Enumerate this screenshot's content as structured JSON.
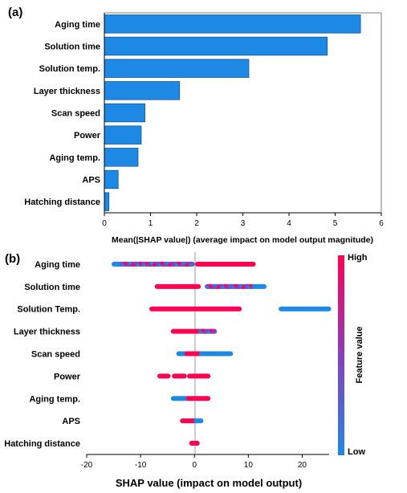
{
  "chart_data": [
    {
      "type": "bar",
      "orientation": "horizontal",
      "panel_label": "(a)",
      "categories": [
        "Aging time",
        "Solution time",
        "Solution temp.",
        "Layer thickness",
        "Scan speed",
        "Power",
        "Aging temp.",
        "APS",
        "Hatching distance"
      ],
      "values": [
        5.55,
        4.83,
        3.13,
        1.63,
        0.88,
        0.8,
        0.73,
        0.3,
        0.1
      ],
      "xlabel": "Mean(|SHAP value|) (average impact on model output magnitude)",
      "xlim": [
        0,
        6
      ],
      "xticks": [
        "0",
        "1",
        "2",
        "3",
        "4",
        "5",
        "6"
      ],
      "bar_color": "#1e88e5"
    },
    {
      "type": "scatter",
      "subtype": "beeswarm",
      "panel_label": "(b)",
      "categories": [
        "Aging time",
        "Solution time",
        "Solution Temp.",
        "Layer thickness",
        "Scan speed",
        "Power",
        "Aging temp.",
        "APS",
        "Hatching distance"
      ],
      "segments": [
        [
          {
            "from": -15,
            "to": -13.5,
            "value": "low"
          },
          {
            "from": -13.5,
            "to": -9.5,
            "value": "mixed"
          },
          {
            "from": -9.5,
            "to": -3.5,
            "value": "mixed"
          },
          {
            "from": -3.5,
            "to": -0.3,
            "value": "mixed"
          },
          {
            "from": 0.5,
            "to": 11,
            "value": "high"
          }
        ],
        [
          {
            "from": -7,
            "to": 0.8,
            "value": "high"
          },
          {
            "from": 2.3,
            "to": 7,
            "value": "mixed"
          },
          {
            "from": 7,
            "to": 11,
            "value": "mixed"
          },
          {
            "from": 11,
            "to": 13,
            "value": "low"
          }
        ],
        [
          {
            "from": -8,
            "to": 8.4,
            "value": "high"
          },
          {
            "from": 16,
            "to": 25,
            "value": "low"
          }
        ],
        [
          {
            "from": -4,
            "to": 1,
            "value": "high"
          },
          {
            "from": 1,
            "to": 2.5,
            "value": "mixed"
          },
          {
            "from": 2.5,
            "to": 3.8,
            "value": "mixed"
          }
        ],
        [
          {
            "from": -3,
            "to": -1.5,
            "value": "low"
          },
          {
            "from": -1.5,
            "to": 1.2,
            "value": "high"
          },
          {
            "from": 1.2,
            "to": 6.8,
            "value": "low"
          }
        ],
        [
          {
            "from": -6.5,
            "to": -4.8,
            "value": "high"
          },
          {
            "from": -3.8,
            "to": -1.8,
            "value": "high"
          },
          {
            "from": -1,
            "to": 2.6,
            "value": "high"
          }
        ],
        [
          {
            "from": -4,
            "to": -1.2,
            "value": "low"
          },
          {
            "from": -1.2,
            "to": 2.6,
            "value": "high"
          }
        ],
        [
          {
            "from": -2.3,
            "to": 0.2,
            "value": "high"
          },
          {
            "from": 0.2,
            "to": 1.3,
            "value": "low"
          }
        ],
        [
          {
            "from": -0.6,
            "to": 0.6,
            "value": "high"
          }
        ]
      ],
      "xlabel": "SHAP value (impact on model output)",
      "xlim": [
        -20,
        25
      ],
      "xticks": [
        "-20",
        "-10",
        "0",
        "10",
        "20"
      ],
      "colorbar": {
        "title": "Feature value",
        "high_label": "High",
        "low_label": "Low",
        "high_color": "#ff0052",
        "low_color": "#1e88e5"
      }
    }
  ]
}
